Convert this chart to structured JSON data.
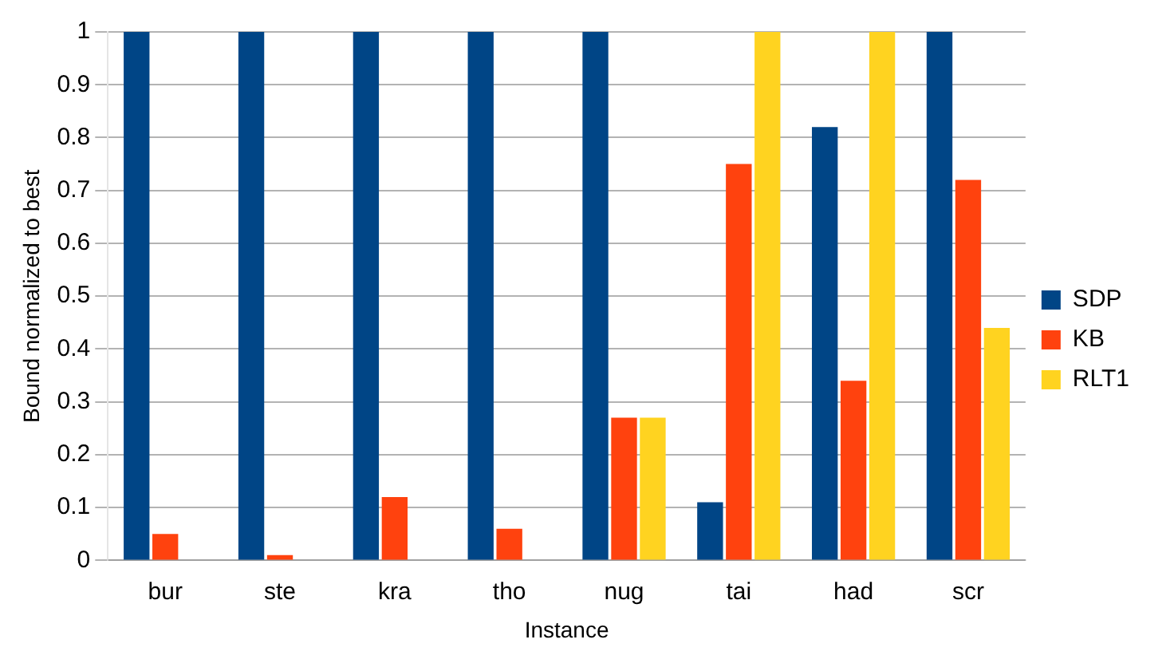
{
  "chart_data": {
    "type": "bar",
    "xlabel": "Instance",
    "ylabel": "Bound normalized to best",
    "categories": [
      "bur",
      "ste",
      "kra",
      "tho",
      "nug",
      "tai",
      "had",
      "scr"
    ],
    "series": [
      {
        "name": "SDP",
        "color": "#004586",
        "values": [
          1,
          1,
          1,
          1,
          1,
          0.11,
          0.82,
          1
        ]
      },
      {
        "name": "KB",
        "color": "#ff420e",
        "values": [
          0.05,
          0.01,
          0.12,
          0.06,
          0.27,
          0.75,
          0.34,
          0.72
        ]
      },
      {
        "name": "RLT1",
        "color": "#ffd320",
        "values": [
          null,
          null,
          null,
          null,
          0.27,
          1,
          1,
          0.44
        ]
      }
    ],
    "ylim": [
      0,
      1
    ],
    "yticks": [
      0,
      0.1,
      0.2,
      0.3,
      0.4,
      0.5,
      0.6,
      0.7,
      0.8,
      0.9,
      1
    ],
    "grid": "y",
    "legend": "right"
  }
}
